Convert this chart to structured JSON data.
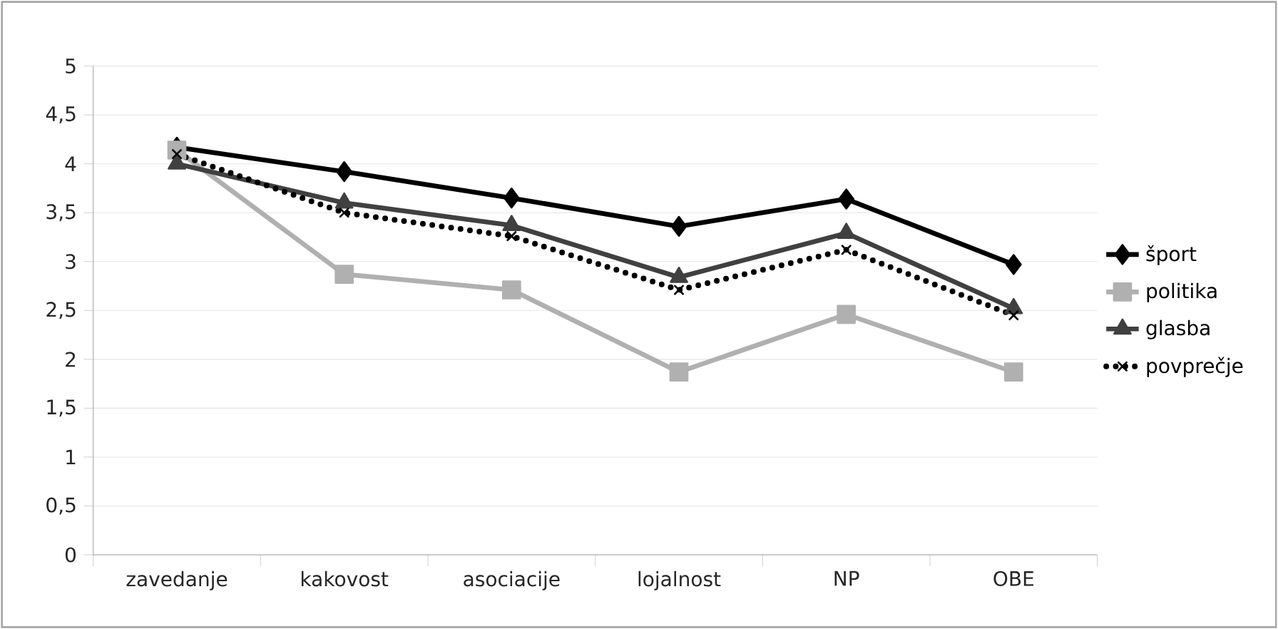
{
  "chart_data": {
    "type": "line",
    "categories": [
      "zavedanje",
      "kakovost",
      "asociacije",
      "lojalnost",
      "NP",
      "OBE"
    ],
    "series": [
      {
        "name": "šport",
        "color": "#000000",
        "marker": "diamond",
        "line_style": "solid",
        "values": [
          4.17,
          3.92,
          3.65,
          3.36,
          3.64,
          2.97
        ]
      },
      {
        "name": "politika",
        "color": "#b0b0b0",
        "marker": "square",
        "line_style": "solid",
        "values": [
          4.14,
          2.87,
          2.71,
          1.87,
          2.46,
          1.87
        ]
      },
      {
        "name": "glasba",
        "color": "#404040",
        "marker": "triangle",
        "line_style": "solid",
        "values": [
          4.0,
          3.6,
          3.37,
          2.84,
          3.29,
          2.52
        ]
      },
      {
        "name": "povprečje",
        "color": "#000000",
        "marker": "cross",
        "line_style": "dotted",
        "values": [
          4.1,
          3.5,
          3.26,
          2.71,
          3.12,
          2.45
        ]
      }
    ],
    "ylim": [
      0,
      5
    ],
    "yticks": [
      0,
      {
        "value": 0.5,
        "label": "0,5"
      },
      1,
      {
        "value": 1.5,
        "label": "1,5"
      },
      2,
      {
        "value": 2.5,
        "label": "2,5"
      },
      3,
      {
        "value": 3.5,
        "label": "3,5"
      },
      4,
      {
        "value": 4.5,
        "label": "4,5"
      },
      5
    ],
    "grid": "y",
    "legend": "right"
  }
}
